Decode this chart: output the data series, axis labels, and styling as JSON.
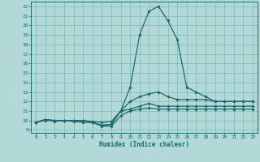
{
  "title": "",
  "xlabel": "Humidex (Indice chaleur)",
  "ylabel": "",
  "xlim": [
    -0.5,
    23.5
  ],
  "ylim": [
    8.7,
    22.5
  ],
  "xticks": [
    0,
    1,
    2,
    3,
    4,
    5,
    6,
    7,
    8,
    9,
    10,
    11,
    12,
    13,
    14,
    15,
    16,
    17,
    18,
    19,
    20,
    21,
    22,
    23
  ],
  "yticks": [
    9,
    10,
    11,
    12,
    13,
    14,
    15,
    16,
    17,
    18,
    19,
    20,
    21,
    22
  ],
  "bg_color": "#b2d8d8",
  "grid_color": "#7ab8b8",
  "line_color": "#1a6b6b",
  "lines": [
    [
      9.8,
      10.1,
      10.0,
      10.0,
      10.0,
      10.0,
      9.8,
      9.5,
      9.6,
      11.0,
      13.5,
      19.0,
      21.5,
      22.0,
      20.5,
      18.5,
      13.5,
      13.0,
      12.5,
      12.0,
      12.0,
      12.0,
      12.0,
      12.0
    ],
    [
      9.8,
      10.0,
      10.0,
      10.0,
      10.0,
      10.0,
      9.9,
      9.8,
      9.9,
      11.0,
      12.0,
      12.5,
      12.8,
      13.0,
      12.5,
      12.2,
      12.2,
      12.2,
      12.2,
      12.0,
      12.0,
      12.0,
      12.0,
      12.0
    ],
    [
      9.8,
      10.1,
      10.0,
      10.0,
      10.0,
      10.0,
      9.8,
      9.5,
      9.6,
      11.0,
      11.2,
      11.5,
      11.8,
      11.5,
      11.5,
      11.5,
      11.5,
      11.5,
      11.5,
      11.5,
      11.5,
      11.5,
      11.5,
      11.5
    ],
    [
      9.8,
      10.1,
      9.9,
      10.0,
      9.9,
      9.8,
      9.8,
      9.4,
      9.4,
      10.5,
      11.0,
      11.2,
      11.3,
      11.2,
      11.2,
      11.2,
      11.2,
      11.2,
      11.2,
      11.2,
      11.2,
      11.2,
      11.2,
      11.2
    ]
  ]
}
